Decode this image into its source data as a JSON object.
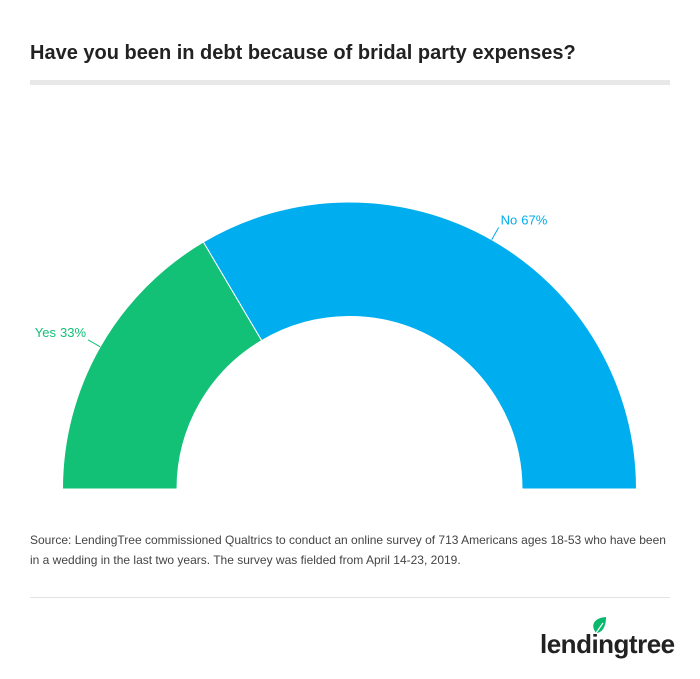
{
  "chart_data": {
    "type": "semi-donut",
    "title": "Have you been in debt because of bridal party expenses?",
    "categories": [
      "Yes",
      "No"
    ],
    "values": [
      33,
      67
    ],
    "value_labels": [
      "33%",
      "67%"
    ],
    "colors": [
      "#12c076",
      "#00adee"
    ],
    "source": "Source: LendingTree commissioned Qualtrics to conduct an online survey of 713 Americans ages 18-53 who have been in a wedding in the last two years. The survey was fielded from April 14-23, 2019."
  },
  "logo": "lendingtree"
}
